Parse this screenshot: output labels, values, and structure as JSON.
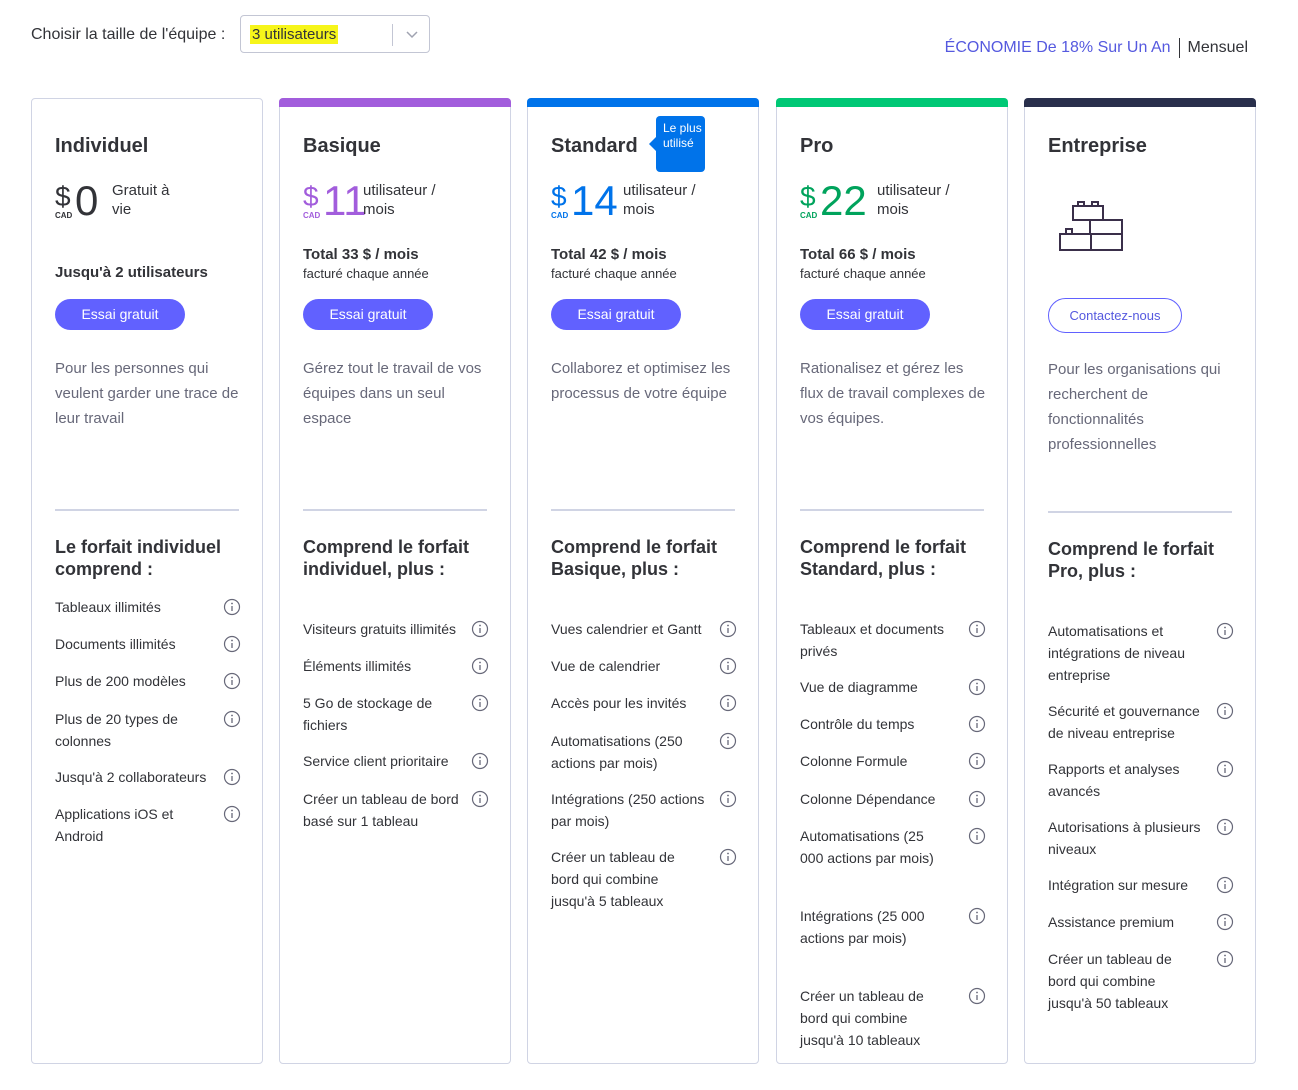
{
  "team_size": {
    "label": "Choisir la taille de l'équipe :",
    "selected": "3 utilisateurs"
  },
  "billing": {
    "annual_saving": "ÉCONOMIE De 18% Sur Un An",
    "monthly": "Mensuel"
  },
  "colors": {
    "accent": "#6161ff",
    "basic": "#a25ddc",
    "standard": "#0073ea",
    "pro": "#00c875",
    "enterprise": "#292f4c"
  },
  "plans": [
    {
      "name": "Individuel",
      "currency_symbol": "$",
      "currency_code": "CAD",
      "price": "0",
      "price_unit": "Gratuit à vie",
      "users_limit": "Jusqu'à 2 utilisateurs",
      "cta": "Essai gratuit",
      "description": "Pour les personnes qui veulent garder une trace de leur travail",
      "includes_title": "Le forfait individuel comprend :",
      "features": [
        "Tableaux illimités",
        "Documents illimités",
        "Plus de 200 modèles",
        "Plus de 20 types de colonnes",
        "Jusqu'à 2 collaborateurs",
        "Applications iOS et Android"
      ]
    },
    {
      "name": "Basique",
      "currency_symbol": "$",
      "currency_code": "CAD",
      "price": "11",
      "price_unit": "utilisateur / mois",
      "total": "Total 33 $ / mois",
      "billed": "facturé chaque année",
      "cta": "Essai gratuit",
      "description": "Gérez tout le travail de vos équipes dans un seul espace",
      "includes_title": "Comprend le forfait individuel, plus :",
      "features": [
        "Visiteurs gratuits illimités",
        "Éléments illimités",
        "5 Go de stockage de fichiers",
        "Service client prioritaire",
        "Créer un tableau de bord basé sur 1 tableau"
      ]
    },
    {
      "name": "Standard",
      "badge": "Le plus utilisé",
      "currency_symbol": "$",
      "currency_code": "CAD",
      "price": "14",
      "price_unit": "utilisateur / mois",
      "total": "Total 42 $ / mois",
      "billed": "facturé chaque année",
      "cta": "Essai gratuit",
      "description": "Collaborez et optimisez les processus de votre équipe",
      "includes_title": "Comprend le forfait Basique, plus :",
      "features": [
        "Vues calendrier et Gantt",
        "Vue de calendrier",
        "Accès pour les invités",
        "Automatisations (250 actions par mois)",
        "Intégrations (250 actions par mois)",
        "Créer un tableau de bord qui combine jusqu'à 5 tableaux"
      ]
    },
    {
      "name": "Pro",
      "currency_symbol": "$",
      "currency_code": "CAD",
      "price": "22",
      "price_unit": "utilisateur / mois",
      "total": "Total 66 $ / mois",
      "billed": "facturé chaque année",
      "cta": "Essai gratuit",
      "description": "Rationalisez et gérez les flux de travail complexes de vos équipes.",
      "includes_title": "Comprend le forfait Standard, plus :",
      "features": [
        "Tableaux et documents privés",
        "Vue de diagramme",
        "Contrôle du temps",
        "Colonne Formule",
        "Colonne Dépendance",
        "Automatisations (25 000 actions par mois)",
        "Intégrations (25 000 actions par mois)",
        "Créer un tableau de bord qui combine jusqu'à 10 tableaux"
      ]
    },
    {
      "name": "Entreprise",
      "icon": "building-blocks-icon",
      "cta": "Contactez-nous",
      "description": "Pour les organisations qui recherchent de fonctionnalités professionnelles",
      "includes_title": "Comprend le forfait Pro, plus :",
      "features": [
        "Automatisations et intégrations de niveau entreprise",
        "Sécurité et gouvernance de niveau entreprise",
        "Rapports et analyses avancés",
        "Autorisations à plusieurs niveaux",
        "Intégration sur mesure",
        "Assistance premium",
        "Créer un tableau de bord qui combine jusqu'à 50 tableaux"
      ]
    }
  ]
}
